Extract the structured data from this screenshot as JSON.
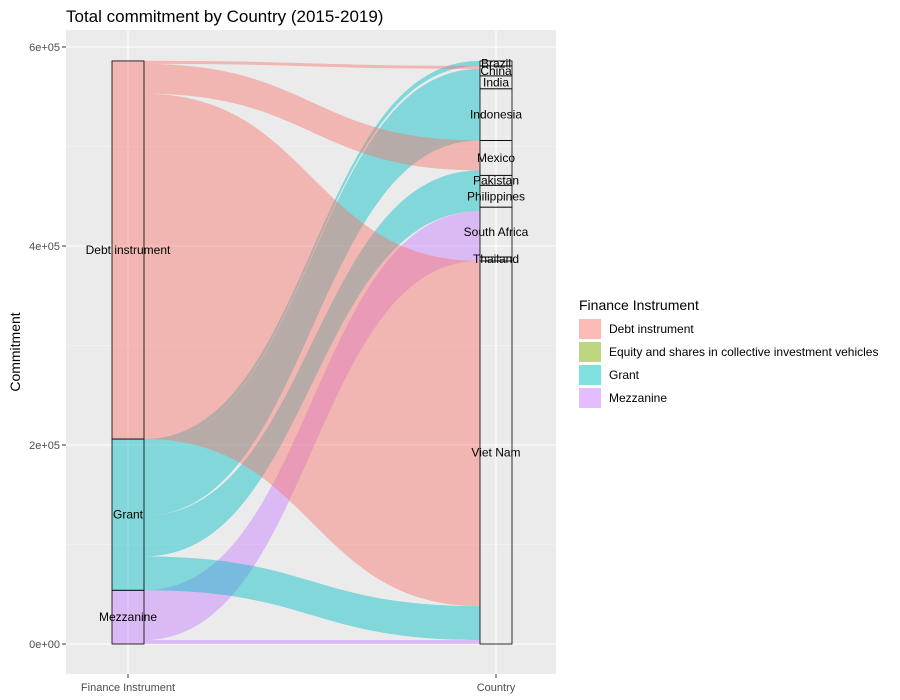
{
  "chart_data": {
    "type": "alluvial",
    "title": "Total commitment by Country (2015-2019)",
    "ylabel": "Commitment",
    "xlabel": "",
    "x_axes": [
      "Finance Instrument",
      "Country"
    ],
    "ylim": [
      0,
      620000
    ],
    "y_ticks": [
      0,
      200000,
      400000,
      600000
    ],
    "y_tick_labels": [
      "0e+00",
      "2e+05",
      "4e+05",
      "6e+05"
    ],
    "grid": true,
    "legend": {
      "title": "Finance Instrument",
      "placement": "right",
      "entries": [
        {
          "label": "Debt instrument",
          "color": "#f8766d"
        },
        {
          "label": "Equity and shares in collective investment vehicles",
          "color": "#7cae00"
        },
        {
          "label": "Grant",
          "color": "#00bfc4"
        },
        {
          "label": "Mezzanine",
          "color": "#c77cff"
        }
      ]
    },
    "instrument_strata": [
      {
        "label": "Mezzanine",
        "value": 54000
      },
      {
        "label": "Grant",
        "value": 152000
      },
      {
        "label": "Debt instrument",
        "value": 380000
      }
    ],
    "country_strata": [
      {
        "label": "Viet Nam",
        "value": 385000
      },
      {
        "label": "Thailand",
        "value": 4000
      },
      {
        "label": "South Africa",
        "value": 50000
      },
      {
        "label": "Philippines",
        "value": 22000
      },
      {
        "label": "Pakistan",
        "value": 10000
      },
      {
        "label": "Mexico",
        "value": 35000
      },
      {
        "label": "Indonesia",
        "value": 52000
      },
      {
        "label": "India",
        "value": 13000
      },
      {
        "label": "China",
        "value": 10000
      },
      {
        "label": "Brazil",
        "value": 5000
      }
    ],
    "flows": [
      {
        "from": "Mezzanine",
        "to": "Viet Nam",
        "value": 4000
      },
      {
        "from": "Mezzanine",
        "to": "Thailand",
        "value": 4000
      },
      {
        "from": "Mezzanine",
        "to": "South Africa",
        "value": 46000
      },
      {
        "from": "Grant",
        "to": "Viet Nam",
        "value": 34000
      },
      {
        "from": "Grant",
        "to": "South Africa",
        "value": 4000
      },
      {
        "from": "Grant",
        "to": "Philippines",
        "value": 22000
      },
      {
        "from": "Grant",
        "to": "Pakistan",
        "value": 10000
      },
      {
        "from": "Grant",
        "to": "Mexico",
        "value": 5000
      },
      {
        "from": "Grant",
        "to": "Indonesia",
        "value": 52000
      },
      {
        "from": "Grant",
        "to": "India",
        "value": 13000
      },
      {
        "from": "Grant",
        "to": "China",
        "value": 7000
      },
      {
        "from": "Grant",
        "to": "Brazil",
        "value": 5000
      },
      {
        "from": "Debt instrument",
        "to": "Viet Nam",
        "value": 347000
      },
      {
        "from": "Debt instrument",
        "to": "Mexico",
        "value": 30000
      },
      {
        "from": "Debt instrument",
        "to": "China",
        "value": 3000
      }
    ]
  }
}
